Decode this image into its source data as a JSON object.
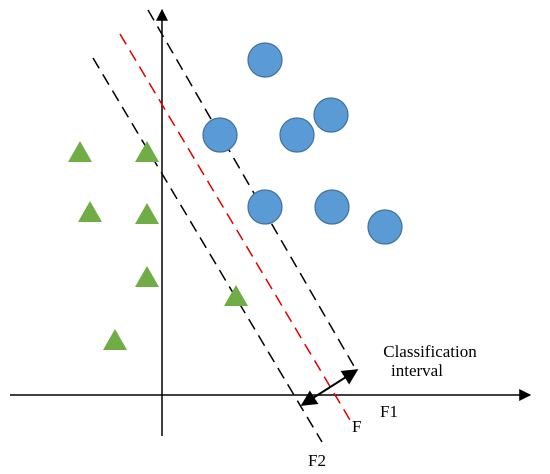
{
  "labels": {
    "interval": [
      "Classification",
      "interval"
    ],
    "f1": "F1",
    "f": "F",
    "f2": "F2"
  }
}
